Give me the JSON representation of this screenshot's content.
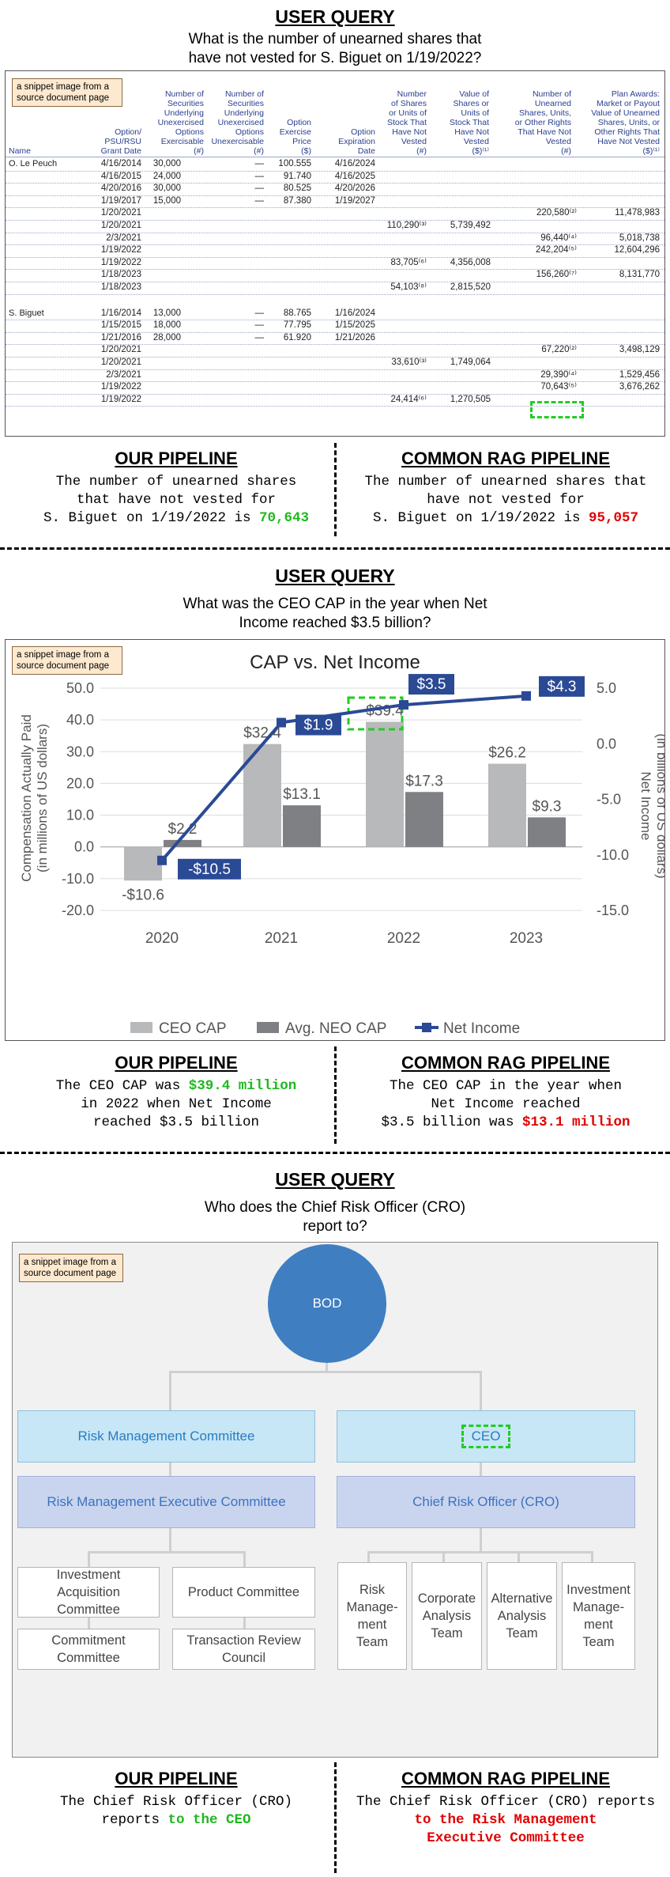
{
  "section1": {
    "title": "USER QUERY",
    "query_line1": "What is the number of unearned shares that",
    "query_line2": "have not vested for S. Biguet on 1/19/2022?",
    "snippet_tag": "a snippet image from a source document page",
    "headers": {
      "name": "Name",
      "grant_date": [
        "Option/",
        "PSU/RSU",
        "Grant Date"
      ],
      "exercisable": [
        "Number of",
        "Securities",
        "Underlying",
        "Unexercised",
        "Options",
        "Exercisable",
        "(#)"
      ],
      "unexercisable": [
        "Number of",
        "Securities",
        "Underlying",
        "Unexercised",
        "Options",
        "Unexercisable",
        "(#)"
      ],
      "exercise_price": [
        "Option",
        "Exercise",
        "Price",
        "($)"
      ],
      "expiration": [
        "Option",
        "Expiration",
        "Date"
      ],
      "shares_not_vested": [
        "Number",
        "of Shares",
        "or Units of",
        "Stock That",
        "Have Not",
        "Vested",
        "(#)"
      ],
      "value_not_vested": [
        "Value of",
        "Shares or",
        "Units of",
        "Stock That",
        "Have Not",
        "Vested",
        "($)⁽¹⁾"
      ],
      "unearned_shares": [
        "Number of",
        "Unearned",
        "Shares, Units,",
        "or Other Rights",
        "That Have Not",
        "Vested",
        "(#)"
      ],
      "plan_awards": [
        "Plan Awards:",
        "Market or Payout",
        "Value of Unearned",
        "Shares, Units, or",
        "Other Rights That",
        "Have Not Vested",
        "($)⁽¹⁾"
      ]
    },
    "groups": [
      {
        "name": "O. Le Peuch",
        "rows": [
          {
            "date": "4/16/2014",
            "ex": "30,000",
            "unex": "—",
            "price": "100.555",
            "exp": "4/16/2024",
            "snv": "",
            "vnv": "",
            "unearned": "",
            "plan": ""
          },
          {
            "date": "4/16/2015",
            "ex": "24,000",
            "unex": "—",
            "price": "91.740",
            "exp": "4/16/2025",
            "snv": "",
            "vnv": "",
            "unearned": "",
            "plan": ""
          },
          {
            "date": "4/20/2016",
            "ex": "30,000",
            "unex": "—",
            "price": "80.525",
            "exp": "4/20/2026",
            "snv": "",
            "vnv": "",
            "unearned": "",
            "plan": ""
          },
          {
            "date": "1/19/2017",
            "ex": "15,000",
            "unex": "—",
            "price": "87.380",
            "exp": "1/19/2027",
            "snv": "",
            "vnv": "",
            "unearned": "",
            "plan": ""
          },
          {
            "date": "1/20/2021",
            "ex": "",
            "unex": "",
            "price": "",
            "exp": "",
            "snv": "",
            "vnv": "",
            "unearned": "220,580⁽²⁾",
            "plan": "11,478,983"
          },
          {
            "date": "1/20/2021",
            "ex": "",
            "unex": "",
            "price": "",
            "exp": "",
            "snv": "110,290⁽³⁾",
            "vnv": "5,739,492",
            "unearned": "",
            "plan": ""
          },
          {
            "date": "2/3/2021",
            "ex": "",
            "unex": "",
            "price": "",
            "exp": "",
            "snv": "",
            "vnv": "",
            "unearned": "96,440⁽⁴⁾",
            "plan": "5,018,738"
          },
          {
            "date": "1/19/2022",
            "ex": "",
            "unex": "",
            "price": "",
            "exp": "",
            "snv": "",
            "vnv": "",
            "unearned": "242,204⁽⁵⁾",
            "plan": "12,604,296"
          },
          {
            "date": "1/19/2022",
            "ex": "",
            "unex": "",
            "price": "",
            "exp": "",
            "snv": "83,705⁽⁶⁾",
            "vnv": "4,356,008",
            "unearned": "",
            "plan": ""
          },
          {
            "date": "1/18/2023",
            "ex": "",
            "unex": "",
            "price": "",
            "exp": "",
            "snv": "",
            "vnv": "",
            "unearned": "156,260⁽⁷⁾",
            "plan": "8,131,770"
          },
          {
            "date": "1/18/2023",
            "ex": "",
            "unex": "",
            "price": "",
            "exp": "",
            "snv": "54,103⁽⁸⁾",
            "vnv": "2,815,520",
            "unearned": "",
            "plan": ""
          }
        ]
      },
      {
        "name": "S. Biguet",
        "rows": [
          {
            "date": "1/16/2014",
            "ex": "13,000",
            "unex": "—",
            "price": "88.765",
            "exp": "1/16/2024",
            "snv": "",
            "vnv": "",
            "unearned": "",
            "plan": ""
          },
          {
            "date": "1/15/2015",
            "ex": "18,000",
            "unex": "—",
            "price": "77.795",
            "exp": "1/15/2025",
            "snv": "",
            "vnv": "",
            "unearned": "",
            "plan": ""
          },
          {
            "date": "1/21/2016",
            "ex": "28,000",
            "unex": "—",
            "price": "61.920",
            "exp": "1/21/2026",
            "snv": "",
            "vnv": "",
            "unearned": "",
            "plan": ""
          },
          {
            "date": "1/20/2021",
            "ex": "",
            "unex": "",
            "price": "",
            "exp": "",
            "snv": "",
            "vnv": "",
            "unearned": "67,220⁽²⁾",
            "plan": "3,498,129"
          },
          {
            "date": "1/20/2021",
            "ex": "",
            "unex": "",
            "price": "",
            "exp": "",
            "snv": "33,610⁽³⁾",
            "vnv": "1,749,064",
            "unearned": "",
            "plan": ""
          },
          {
            "date": "2/3/2021",
            "ex": "",
            "unex": "",
            "price": "",
            "exp": "",
            "snv": "",
            "vnv": "",
            "unearned": "29,390⁽⁴⁾",
            "plan": "1,529,456"
          },
          {
            "date": "1/19/2022",
            "ex": "",
            "unex": "",
            "price": "",
            "exp": "",
            "snv": "",
            "vnv": "",
            "unearned": "70,643⁽⁵⁾",
            "plan": "3,676,262"
          },
          {
            "date": "1/19/2022",
            "ex": "",
            "unex": "",
            "price": "",
            "exp": "",
            "snv": "24,414⁽⁶⁾",
            "vnv": "1,270,505",
            "unearned": "",
            "plan": ""
          }
        ]
      }
    ],
    "ours_title": "OUR PIPELINE",
    "ours_pre": [
      "The number of unearned shares",
      "that have not vested for",
      "S. Biguet on 1/19/2022 is "
    ],
    "ours_answer": "70,643",
    "rag_title": "COMMON RAG PIPELINE",
    "rag_pre": [
      "The number of unearned shares that",
      "have not vested for",
      "S. Biguet on 1/19/2022 is "
    ],
    "rag_answer": "95,057"
  },
  "section2": {
    "title": "USER QUERY",
    "query_line1": "What was the CEO CAP in the year when Net",
    "query_line2": "Income reached $3.5 billion?",
    "snippet_tag": "a snippet image from a source document page",
    "ours_title": "OUR PIPELINE",
    "ours_lines": [
      "The CEO CAP was ",
      "in 2022 when Net Income",
      "reached $3.5 billion"
    ],
    "ours_answer": "$39.4 million",
    "rag_title": "COMMON RAG PIPELINE",
    "rag_lines": [
      "The CEO CAP in the year when",
      "Net Income reached",
      "$3.5 billion was "
    ],
    "rag_answer": "$13.1 million"
  },
  "chart_data": {
    "type": "bar",
    "title": "CAP vs. Net Income",
    "categories": [
      "2020",
      "2021",
      "2022",
      "2023"
    ],
    "series": [
      {
        "name": "CEO CAP",
        "type": "bar",
        "values": [
          -10.6,
          32.4,
          39.4,
          26.2
        ],
        "labels": [
          "-$10.6",
          "$32.4",
          "$39.4",
          "$26.2"
        ],
        "color": "#b8b9bb"
      },
      {
        "name": "Avg. NEO CAP",
        "type": "bar",
        "values": [
          2.2,
          13.1,
          17.3,
          9.3
        ],
        "labels": [
          "$2.2",
          "$13.1",
          "$17.3",
          "$9.3"
        ],
        "color": "#7f8083"
      },
      {
        "name": "Net Income",
        "type": "line",
        "axis": "right",
        "values": [
          -10.5,
          1.9,
          3.5,
          4.3
        ],
        "labels": [
          "-$10.5",
          "$1.9",
          "$3.5",
          "$4.3"
        ],
        "color": "#2b4a95"
      }
    ],
    "ylabel_left": [
      "Compensation Actually Paid",
      "(in millions of US dollars)"
    ],
    "ylabel_right": [
      "Net Income",
      "(in billions of US dollars)"
    ],
    "ylim_left": [
      -20,
      50
    ],
    "ylim_right": [
      -15,
      5
    ],
    "left_ticks": [
      "50.0",
      "40.0",
      "30.0",
      "20.0",
      "10.0",
      "0.0",
      "-10.0",
      "-20.0"
    ],
    "right_ticks": [
      "5.0",
      "0.0",
      "-5.0",
      "-10.0",
      "-15.0"
    ],
    "legend_position": "bottom",
    "grid": true
  },
  "section3": {
    "title": "USER QUERY",
    "query_line1": "Who does the Chief Risk Officer (CRO)",
    "query_line2": "report to?",
    "snippet_tag": "a snippet image from a source document page",
    "bod": "BOD",
    "rmc": "Risk Management Committee",
    "ceo": "CEO",
    "rmec": "Risk Management Executive Committee",
    "cro": "Chief Risk Officer (CRO)",
    "iac": [
      "Investment",
      "Acquisition",
      "Committee"
    ],
    "pc": "Product Committee",
    "cc": [
      "Commitment",
      "Committee"
    ],
    "trc": [
      "Transaction Review",
      "Council"
    ],
    "teams": [
      [
        "Risk",
        "Manage-",
        "ment",
        "Team"
      ],
      [
        "Corporate",
        "Analysis",
        "Team"
      ],
      [
        "Alternative",
        "Analysis",
        "Team"
      ],
      [
        "Investment",
        "Manage-",
        "ment",
        "Team"
      ]
    ],
    "ours_title": "OUR PIPELINE",
    "ours_line1": "The Chief Risk Officer (CRO)",
    "ours_pre": "reports ",
    "ours_answer": "to the CEO",
    "rag_title": "COMMON RAG PIPELINE",
    "rag_line1": "The Chief Risk Officer (CRO) reports",
    "rag_answer": [
      "to the Risk Management",
      "Executive Committee"
    ]
  }
}
